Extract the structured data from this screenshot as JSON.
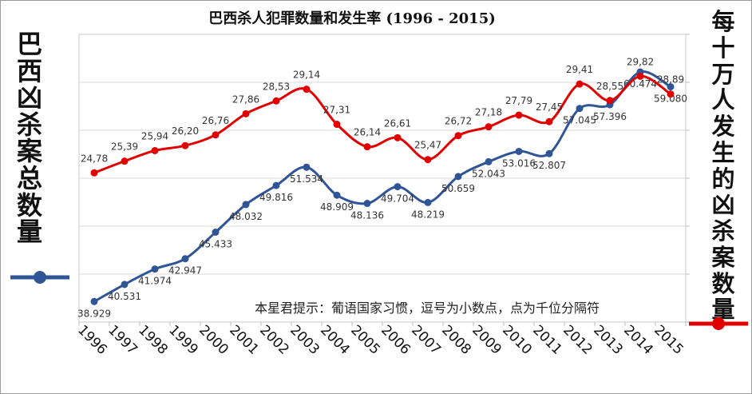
{
  "chart_data": {
    "type": "line",
    "title": "巴西杀人犯罪数量和发生率 (1996 - 2015)",
    "ylabel_left": "巴西凶杀案总数量",
    "ylabel_right": "每十万人发生的凶杀案数量",
    "note": "本星君提示：葡语国家习惯，逗号为小数点，点为千位分隔符",
    "categories": [
      "1996",
      "1997",
      "1998",
      "1999",
      "2000",
      "2001",
      "2002",
      "2003",
      "2004",
      "2005",
      "2006",
      "2007",
      "2008",
      "2009",
      "2010",
      "2011",
      "2012",
      "2013",
      "2014",
      "2015"
    ],
    "ylim_left": [
      37,
      64
    ],
    "ylim_right": [
      17,
      32
    ],
    "grid": true,
    "series": [
      {
        "name": "巴西凶杀案总数量",
        "axis": "left",
        "color": "#2f5597",
        "values": [
          38.929,
          40.531,
          41.974,
          42.947,
          45.433,
          48.032,
          49.816,
          51.534,
          48.909,
          48.136,
          49.704,
          48.219,
          50.659,
          52.043,
          53.016,
          52.807,
          57.045,
          57.396,
          60.474,
          59.08
        ],
        "labels": [
          "38.929",
          "40.531",
          "41.974",
          "42.947",
          "45.433",
          "48.032",
          "49.816",
          "51.534",
          "48.909",
          "48.136",
          "49.704",
          "48.219",
          "50.659",
          "52.043",
          "53.016",
          "52.807",
          "57.045",
          "57.396",
          "60.474",
          "59.080"
        ]
      },
      {
        "name": "每十万人发生的凶杀案数量",
        "axis": "right",
        "color": "#e00000",
        "values": [
          24.78,
          25.39,
          25.94,
          26.2,
          26.76,
          27.86,
          28.53,
          29.14,
          27.31,
          26.14,
          26.61,
          25.47,
          26.72,
          27.18,
          27.79,
          27.45,
          29.41,
          28.55,
          29.82,
          28.89
        ],
        "labels": [
          "24,78",
          "25,39",
          "25,94",
          "26,20",
          "26,76",
          "27,86",
          "28,53",
          "29,14",
          "27,31",
          "26,14",
          "26,61",
          "25,47",
          "26,72",
          "27,18",
          "27,79",
          "27,45",
          "29,41",
          "28,55",
          "29,82",
          "28,89"
        ]
      }
    ]
  }
}
